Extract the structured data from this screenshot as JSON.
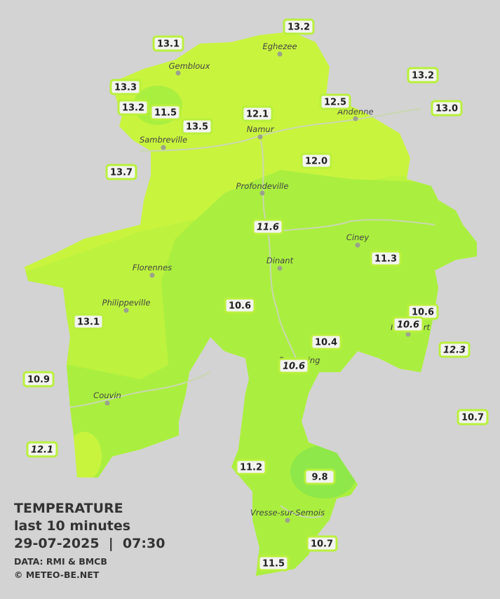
{
  "legend": {
    "title": "TEMPERATURE",
    "subtitle": "last 10 minutes",
    "datetime": "29-07-2025  |  07:30",
    "source": "DATA: RMI & BMCB",
    "credit": "© METEO-BE.NET"
  },
  "cities": [
    "Eghezee",
    "Gembloux",
    "Andenne",
    "Namur",
    "Sambreville",
    "Profondeville",
    "Ciney",
    "Dinant",
    "Florennes",
    "Philippeville",
    "Couvin",
    "Rochefort",
    "Beauraing",
    "Vresse-sur-Semois"
  ],
  "stations": [
    {
      "label": "13.2"
    },
    {
      "label": "13.1"
    },
    {
      "label": "13.3"
    },
    {
      "label": "13.2"
    },
    {
      "label": "13.2"
    },
    {
      "label": "11.5"
    },
    {
      "label": "12.5"
    },
    {
      "label": "12.1"
    },
    {
      "label": "13.0"
    },
    {
      "label": "13.5"
    },
    {
      "label": "12.0"
    },
    {
      "label": "13.7"
    },
    {
      "label": "11.6",
      "italic": true
    },
    {
      "label": "11.3"
    },
    {
      "label": "10.6"
    },
    {
      "label": "10.6"
    },
    {
      "label": "10.6",
      "italic": true
    },
    {
      "label": "13.1"
    },
    {
      "label": "10.4"
    },
    {
      "label": "12.3",
      "italic": true
    },
    {
      "label": "10.6",
      "italic": true
    },
    {
      "label": "10.9"
    },
    {
      "label": "10.7"
    },
    {
      "label": "12.1",
      "italic": true
    },
    {
      "label": "11.2"
    },
    {
      "label": "9.8"
    },
    {
      "label": "10.7"
    },
    {
      "label": "11.5"
    }
  ]
}
